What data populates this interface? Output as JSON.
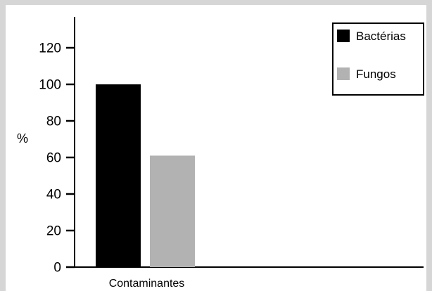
{
  "chart_data": {
    "type": "bar",
    "categories": [
      "Contaminantes"
    ],
    "series": [
      {
        "name": "Bactérias",
        "values": [
          100
        ],
        "color": "#000000"
      },
      {
        "name": "Fungos",
        "values": [
          61
        ],
        "color": "#b2b2b2"
      }
    ],
    "ylabel": "%",
    "xlabel": "",
    "ylim": [
      0,
      140
    ],
    "yticks": [
      0,
      20,
      40,
      60,
      80,
      100,
      120
    ],
    "grid": false,
    "legend_position": "top-right"
  }
}
